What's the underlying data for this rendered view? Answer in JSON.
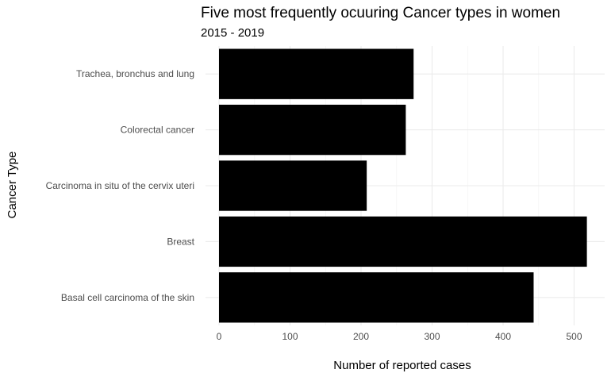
{
  "chart_data": {
    "type": "bar",
    "orientation": "horizontal",
    "title": "Five most frequently ocuuring Cancer types in women",
    "subtitle": "2015 - 2019",
    "xlabel": "Number of reported cases",
    "ylabel": "Cancer Type",
    "categories": [
      "Basal cell carcinoma of the skin",
      "Breast",
      "Carcinoma in situ of the cervix uteri",
      "Colorectal cancer",
      "Trachea, bronchus and lung"
    ],
    "values": [
      443,
      518,
      208,
      263,
      274
    ],
    "xlim": [
      0,
      545
    ],
    "x_ticks": [
      0,
      100,
      200,
      300,
      400,
      500
    ],
    "bar_color": "#000000",
    "grid": true,
    "legend": "none"
  }
}
